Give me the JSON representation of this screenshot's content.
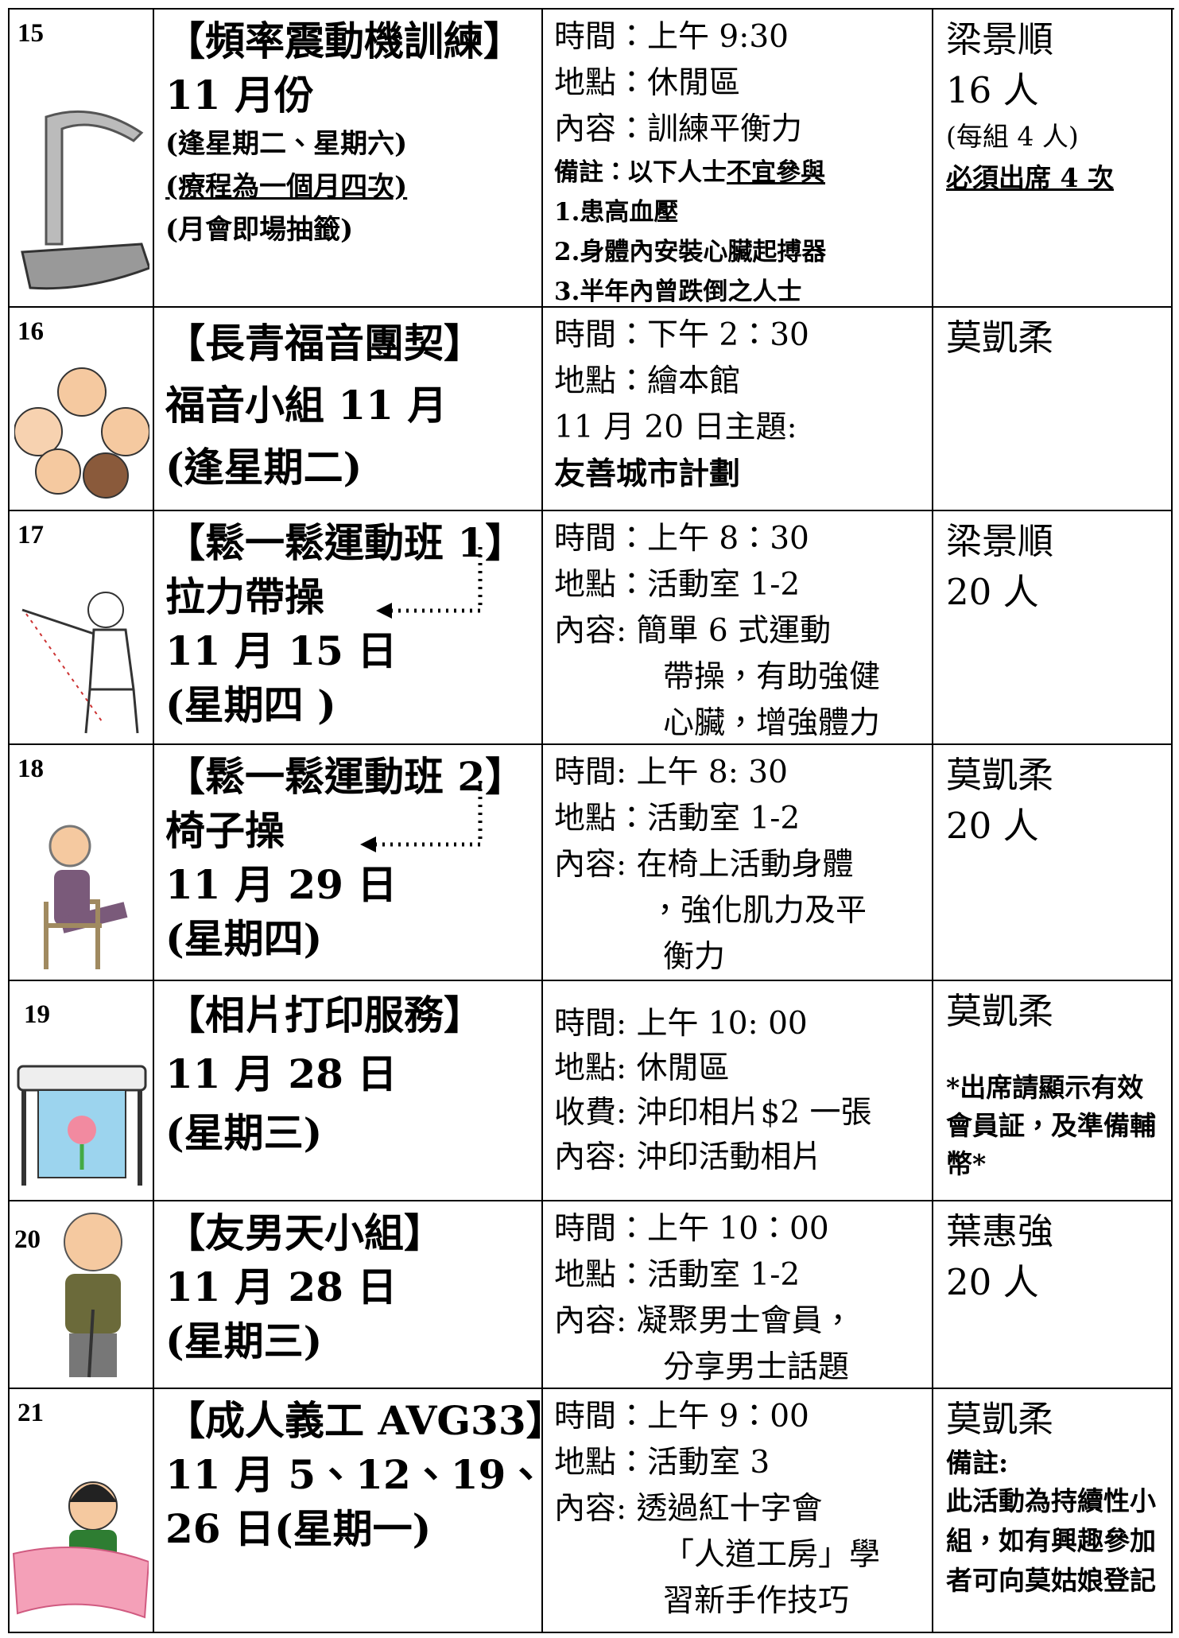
{
  "rows": [
    {
      "number": "15",
      "title": [
        "【頻率震動機訓練】",
        "11 月份",
        "(逢星期二、星期六)",
        "(療程為一個月四次)",
        "(月會即場抽籤)"
      ],
      "details": [
        "時間：上午 9:30",
        "地點：休閒區",
        "內容：訓練平衡力",
        "備註：以下人士",
        "不宜參與",
        "1.患高血壓",
        "2.身體內安裝心臟起搏器",
        "3.半年內曾跌倒之人士"
      ],
      "contact": [
        "梁景順",
        "16 人",
        "(每組 4 人)",
        "必須出席 4 次"
      ]
    },
    {
      "number": "16",
      "title": [
        "【長青福音團契】",
        "福音小組 11 月",
        "(逢星期二)"
      ],
      "details": [
        "時間：下午 2：30",
        "地點：繪本館",
        "11 月 20 日主題:",
        "友善城市計劃"
      ],
      "contact": [
        "莫凱柔"
      ]
    },
    {
      "number": "17",
      "title": [
        "【鬆一鬆運動班 1】",
        "拉力帶操",
        "11 月 15 日",
        "(星期四 )"
      ],
      "details": [
        "時間：上午 8：30",
        "地點：活動室 1-2",
        "內容: 簡單 6 式運動",
        "帶操，有助強健",
        "心臟，增強體力"
      ],
      "contact": [
        "梁景順",
        "20 人"
      ]
    },
    {
      "number": "18",
      "title": [
        "【鬆一鬆運動班 2】",
        "椅子操",
        "11 月 29 日",
        "(星期四)"
      ],
      "details": [
        "時間: 上午 8: 30",
        "地點：活動室 1-2",
        "內容: 在椅上活動身體",
        "，強化肌力及平",
        "衡力"
      ],
      "contact": [
        "莫凱柔",
        "20 人"
      ]
    },
    {
      "number": "19",
      "title": [
        "【相片打印服務】",
        "11 月 28 日",
        "(星期三)"
      ],
      "details": [
        "時間: 上午 10: 00",
        "地點: 休閒區",
        "收費: 沖印相片$2 一張",
        "內容: 沖印活動相片"
      ],
      "contact": [
        "莫凱柔",
        "*出席請顯示有效會員証，及準備輔幣*"
      ]
    },
    {
      "number": "20",
      "title": [
        "【友男天小組】",
        "11 月 28 日",
        "(星期三)"
      ],
      "details": [
        "時間：上午 10：00",
        "地點：活動室 1-2",
        "內容: 凝聚男士會員，",
        "分享男士話題"
      ],
      "contact": [
        "葉惠強",
        "20 人"
      ]
    },
    {
      "number": "21",
      "title": [
        "【成人義工 AVG33】",
        "11 月 5、12、19、",
        "26 日(星期一)"
      ],
      "details": [
        "時間：上午 9：00",
        "地點：活動室 3",
        "內容: 透過紅十字會",
        "「人道工房」學",
        "習新手作技巧"
      ],
      "contact": [
        "莫凱柔",
        "備註:",
        "此活動為持續性小組，如有興趣參加者可向莫姑娘登記"
      ]
    }
  ]
}
